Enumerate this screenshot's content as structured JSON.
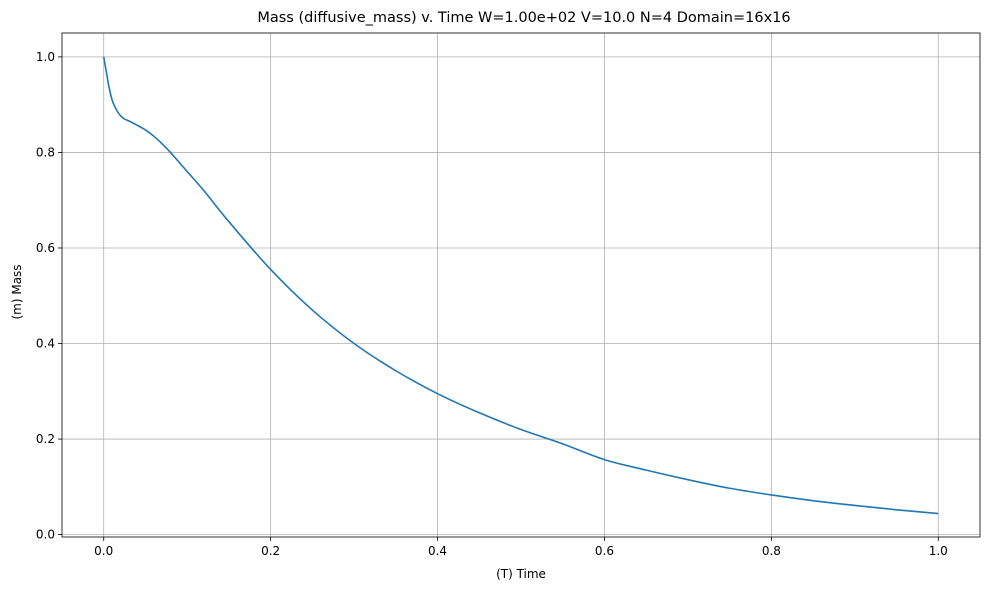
{
  "chart_data": {
    "type": "line",
    "title": "Mass (diffusive_mass) v. Time   W=1.00e+02   V=10.0   N=4  Domain=16x16",
    "xlabel": "(T) Time",
    "ylabel": "(m) Mass",
    "xlim": [
      -0.05,
      1.05
    ],
    "ylim": [
      -0.005,
      1.05
    ],
    "xticks": [
      0.0,
      0.2,
      0.4,
      0.6,
      0.8,
      1.0
    ],
    "xtick_labels": [
      "0.0",
      "0.2",
      "0.4",
      "0.6",
      "0.8",
      "1.0"
    ],
    "yticks": [
      0.0,
      0.2,
      0.4,
      0.6,
      0.8,
      1.0
    ],
    "ytick_labels": [
      "0.0",
      "0.2",
      "0.4",
      "0.6",
      "0.8",
      "1.0"
    ],
    "grid": true,
    "series": [
      {
        "color": "#1f77b4",
        "x": [
          0.0,
          0.003,
          0.006,
          0.01,
          0.015,
          0.02,
          0.025,
          0.03,
          0.04,
          0.05,
          0.06,
          0.07,
          0.08,
          0.1,
          0.12,
          0.15,
          0.2,
          0.25,
          0.3,
          0.35,
          0.4,
          0.45,
          0.5,
          0.55,
          0.6,
          0.65,
          0.7,
          0.75,
          0.8,
          0.85,
          0.9,
          0.95,
          1.0
        ],
        "y": [
          1.0,
          0.97,
          0.94,
          0.91,
          0.89,
          0.877,
          0.87,
          0.866,
          0.857,
          0.847,
          0.834,
          0.818,
          0.8,
          0.76,
          0.72,
          0.655,
          0.555,
          0.47,
          0.4,
          0.343,
          0.295,
          0.255,
          0.22,
          0.19,
          0.157,
          0.135,
          0.115,
          0.097,
          0.083,
          0.071,
          0.061,
          0.052,
          0.044
        ]
      }
    ]
  }
}
